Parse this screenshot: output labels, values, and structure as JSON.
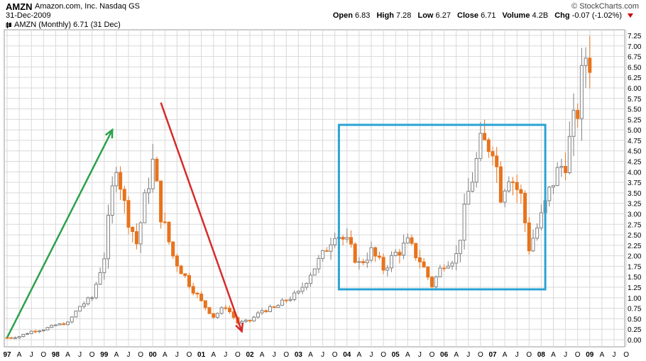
{
  "header": {
    "ticker": "AMZN",
    "company": "Amazon.com, Inc.",
    "exchange": "Nasdaq GS",
    "date": "31-Dec-2009",
    "brand": "© StockCharts.com",
    "quote": {
      "open_label": "Open",
      "open": "6.83",
      "high_label": "High",
      "high": "7.28",
      "low_label": "Low",
      "low": "6.27",
      "close_label": "Close",
      "close": "6.71",
      "volume_label": "Volume",
      "volume": "4.2B",
      "chg_label": "Chg",
      "chg": "-0.07 (-1.02%)"
    },
    "legend": "AMZN (Monthly) 6.71 (31 Dec)",
    "legend_icon": "candlestick-icon"
  },
  "colors": {
    "up_candle": "#7f7f7f",
    "down_candle": "#e8731c",
    "grid": "#d9d9d9",
    "green_arrow": "#2ca14c",
    "red_arrow": "#d62b2b",
    "box": "#2aa3d4"
  },
  "chart_data": {
    "type": "candlestick",
    "interval": "monthly",
    "ylim": [
      0,
      7.25
    ],
    "y_ticks": [
      "0.00",
      "0.25",
      "0.50",
      "0.75",
      "1.00",
      "1.25",
      "1.50",
      "1.75",
      "2.00",
      "2.25",
      "2.50",
      "2.75",
      "3.00",
      "3.25",
      "3.50",
      "3.75",
      "4.00",
      "4.25",
      "4.50",
      "4.75",
      "5.00",
      "5.25",
      "5.50",
      "5.75",
      "6.00",
      "6.25",
      "6.50",
      "6.75",
      "7.00",
      "7.25"
    ],
    "x_labels": [
      "97",
      "A",
      "J",
      "O",
      "98",
      "A",
      "J",
      "O",
      "99",
      "A",
      "J",
      "O",
      "00",
      "A",
      "J",
      "O",
      "01",
      "A",
      "J",
      "O",
      "02",
      "A",
      "J",
      "O",
      "03",
      "A",
      "J",
      "O",
      "04",
      "A",
      "J",
      "O",
      "05",
      "A",
      "J",
      "O",
      "06",
      "A",
      "J",
      "O",
      "07",
      "A",
      "J",
      "O",
      "08",
      "A",
      "J",
      "O",
      "09",
      "A",
      "J",
      "O"
    ],
    "x_bold": [
      "97",
      "98",
      "99",
      "00",
      "01",
      "02",
      "03",
      "04",
      "05",
      "06",
      "07",
      "08",
      "09"
    ],
    "anchors": [
      {
        "month": 0,
        "close": 0.05
      },
      {
        "month": 3,
        "close": 0.08
      },
      {
        "month": 6,
        "close": 0.2
      },
      {
        "month": 9,
        "close": 0.25
      },
      {
        "month": 12,
        "close": 0.35
      },
      {
        "month": 15,
        "close": 0.4
      },
      {
        "month": 18,
        "close": 0.8
      },
      {
        "month": 21,
        "close": 1.0
      },
      {
        "month": 24,
        "close": 2.0
      },
      {
        "month": 27,
        "close": 4.3
      },
      {
        "month": 29,
        "close": 3.2
      },
      {
        "month": 32,
        "close": 2.3
      },
      {
        "month": 35,
        "close": 3.8
      },
      {
        "month": 36,
        "close": 4.2
      },
      {
        "month": 38,
        "close": 3.0
      },
      {
        "month": 41,
        "close": 2.0
      },
      {
        "month": 44,
        "close": 1.5
      },
      {
        "month": 48,
        "close": 0.9
      },
      {
        "month": 51,
        "close": 0.55
      },
      {
        "month": 54,
        "close": 0.8
      },
      {
        "month": 57,
        "close": 0.4
      },
      {
        "month": 60,
        "close": 0.45
      },
      {
        "month": 63,
        "close": 0.7
      },
      {
        "month": 66,
        "close": 0.75
      },
      {
        "month": 69,
        "close": 0.95
      },
      {
        "month": 72,
        "close": 1.1
      },
      {
        "month": 75,
        "close": 1.6
      },
      {
        "month": 78,
        "close": 2.0
      },
      {
        "month": 81,
        "close": 2.6
      },
      {
        "month": 84,
        "close": 2.3
      },
      {
        "month": 87,
        "close": 1.8
      },
      {
        "month": 90,
        "close": 2.1
      },
      {
        "month": 93,
        "close": 1.7
      },
      {
        "month": 96,
        "close": 2.05
      },
      {
        "month": 99,
        "close": 2.3
      },
      {
        "month": 102,
        "close": 1.9
      },
      {
        "month": 105,
        "close": 1.3
      },
      {
        "month": 108,
        "close": 1.85
      },
      {
        "month": 111,
        "close": 2.0
      },
      {
        "month": 114,
        "close": 3.5
      },
      {
        "month": 117,
        "close": 4.6
      },
      {
        "month": 120,
        "close": 4.7
      },
      {
        "month": 122,
        "close": 3.5
      },
      {
        "month": 124,
        "close": 4.0
      },
      {
        "month": 127,
        "close": 3.4
      },
      {
        "month": 129,
        "close": 2.2
      },
      {
        "month": 132,
        "close": 2.9
      },
      {
        "month": 135,
        "close": 3.8
      },
      {
        "month": 138,
        "close": 4.3
      },
      {
        "month": 141,
        "close": 5.5
      },
      {
        "month": 143,
        "close": 6.8
      },
      {
        "month": 144,
        "close": 6.71
      }
    ],
    "annotations": [
      {
        "type": "arrow",
        "color": "green",
        "from": {
          "month": 0,
          "price": 0.05
        },
        "to": {
          "month": 26,
          "price": 5.0
        }
      },
      {
        "type": "arrow",
        "color": "red",
        "from": {
          "month": 38,
          "price": 5.65
        },
        "to": {
          "month": 58,
          "price": 0.2
        }
      },
      {
        "type": "rectangle",
        "color": "blue",
        "x0_month": 82,
        "x1_month": 133,
        "y0_price": 1.2,
        "y1_price": 5.12
      }
    ]
  }
}
